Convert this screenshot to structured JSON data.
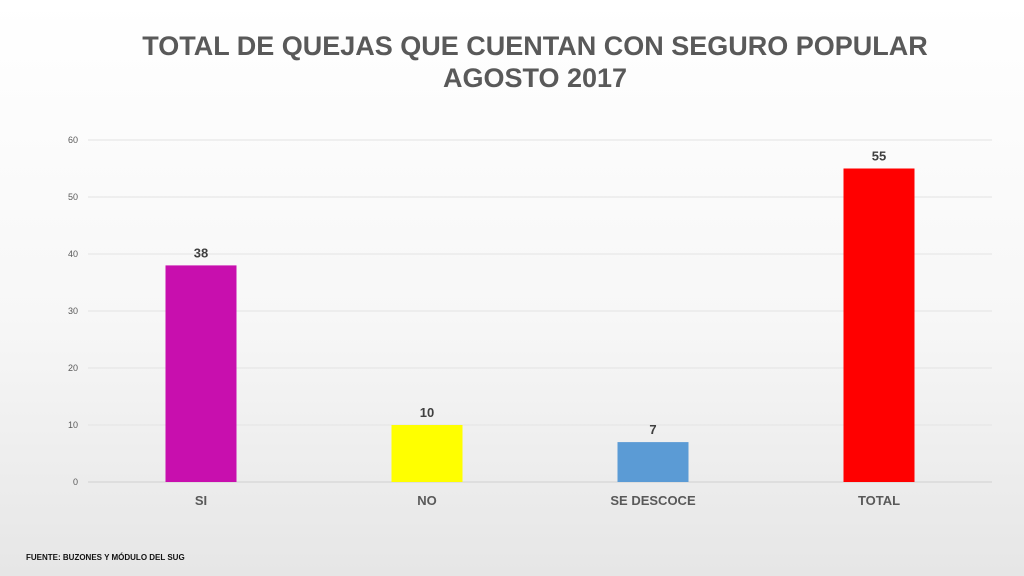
{
  "chart_data": {
    "type": "bar",
    "title": "TOTAL DE QUEJAS QUE CUENTAN CON SEGURO POPULAR",
    "subtitle": "AGOSTO 2017",
    "categories": [
      "SI",
      "NO",
      "SE DESCOCE",
      "TOTAL"
    ],
    "values": [
      38,
      10,
      7,
      55
    ],
    "data_labels": [
      "38",
      "10",
      "7",
      "55"
    ],
    "colors": [
      "#C80FAE",
      "#FFFF00",
      "#5B9BD5",
      "#FF0000"
    ],
    "yticks": [
      "0",
      "10",
      "20",
      "30",
      "40",
      "50",
      "60"
    ],
    "ylim": [
      0,
      60
    ],
    "grid": true,
    "legend": "none",
    "xlabel": "",
    "ylabel": ""
  },
  "footer": {
    "source": "FUENTE: BUZONES Y MÓDULO DEL SUG"
  }
}
